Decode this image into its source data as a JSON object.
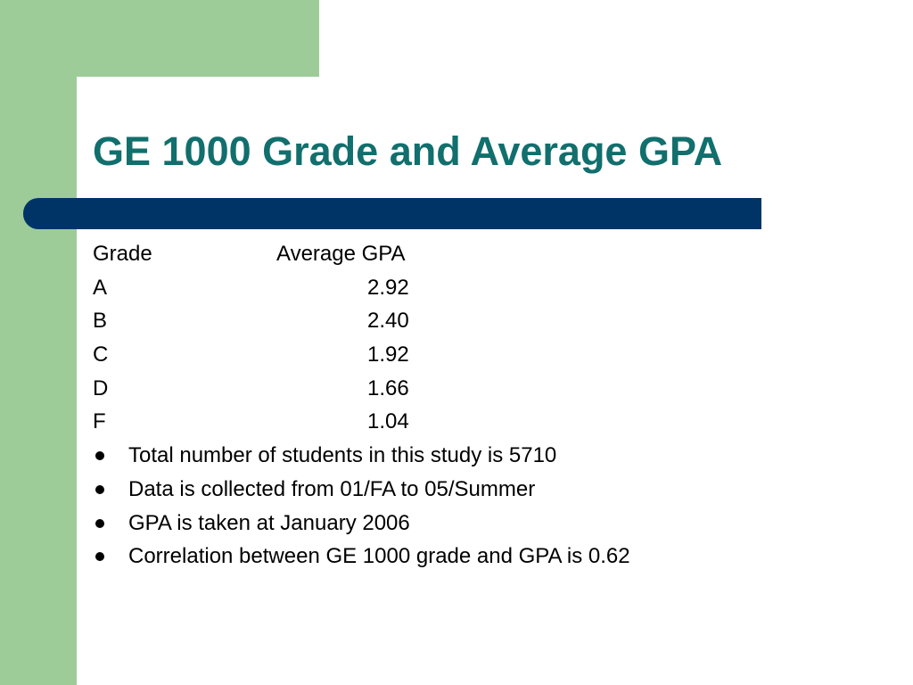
{
  "slide": {
    "title": "GE 1000 Grade and Average GPA",
    "colors": {
      "title": "#116f6d",
      "green_band": "#9dcc98",
      "title_bar": "#003466",
      "background": "#ffffff",
      "text": "#000000"
    }
  },
  "table": {
    "headers": [
      "Grade",
      "Average GPA"
    ],
    "rows": [
      {
        "grade": "A",
        "gpa": "2.92"
      },
      {
        "grade": "B",
        "gpa": "2.40"
      },
      {
        "grade": "C",
        "gpa": "1.92"
      },
      {
        "grade": "D",
        "gpa": "1.66"
      },
      {
        "grade": "F",
        "gpa": "1.04"
      }
    ]
  },
  "bullets": [
    "Total number of students in this study is 5710",
    "Data is collected from 01/FA to 05/Summer",
    "GPA is taken at January 2006",
    "Correlation between GE 1000 grade and GPA is 0.62"
  ]
}
